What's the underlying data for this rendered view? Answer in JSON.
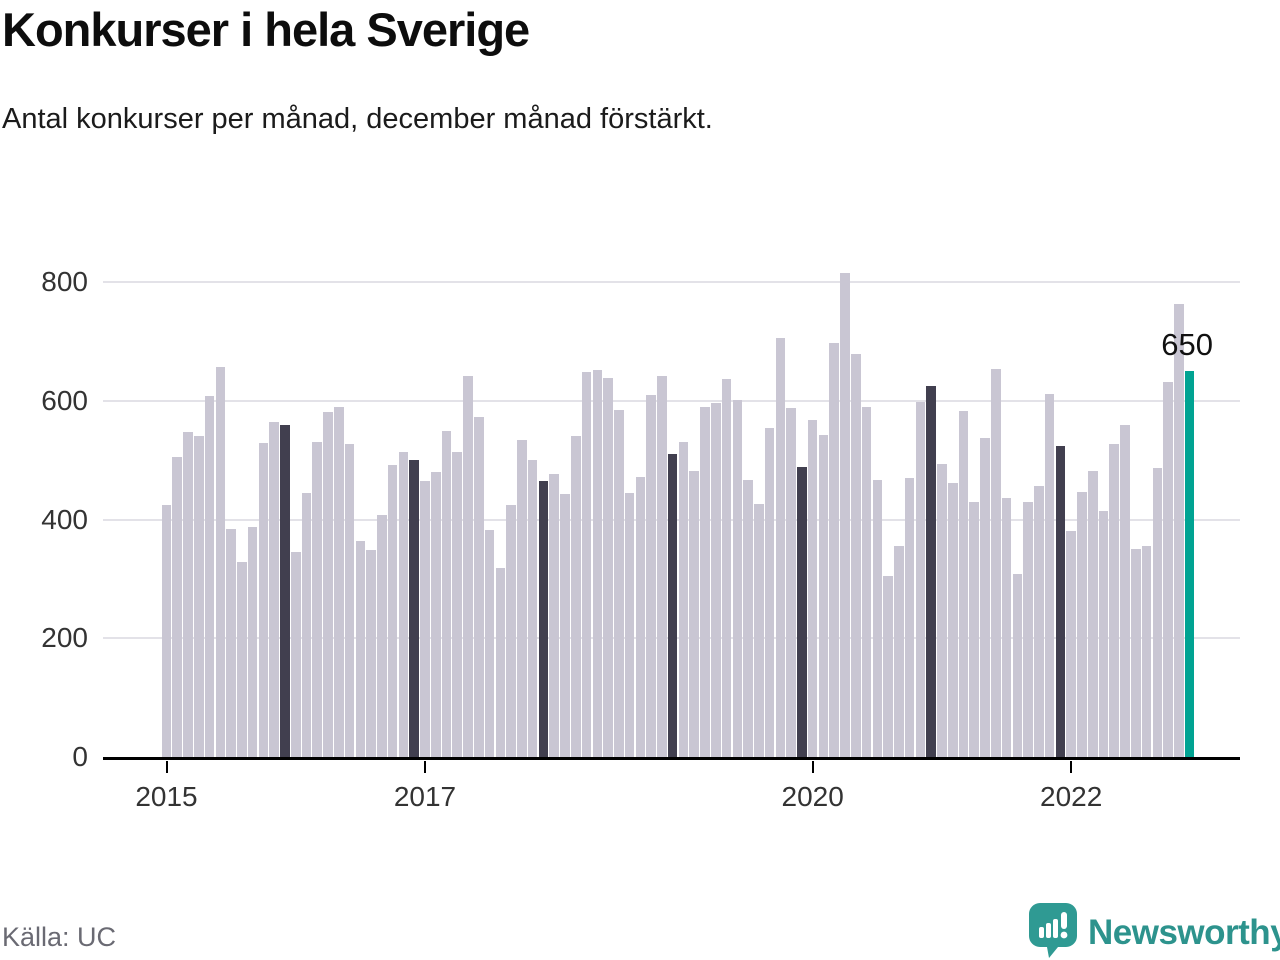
{
  "header": {
    "title": "Konkurser i hela Sverige",
    "subtitle": "Antal konkurser per månad, december månad förstärkt."
  },
  "footer": {
    "source": "Källa: UC",
    "brand": "Newsworthy"
  },
  "colors": {
    "bar_default": "#c9c6d3",
    "bar_december": "#413f4f",
    "bar_highlight": "#00a392",
    "grid": "#e3e2e8",
    "axis": "#000000",
    "brand_teal": "#2d938d"
  },
  "chart_data": {
    "type": "bar",
    "title": "Konkurser i hela Sverige",
    "subtitle": "Antal konkurser per månad, december månad förstärkt.",
    "xlabel": "",
    "ylabel": "Antal konkurser per månad",
    "ylim": [
      0,
      800
    ],
    "yticks": [
      0,
      200,
      400,
      600,
      800
    ],
    "grid": true,
    "legend": false,
    "december_emphasized": true,
    "xticks": [
      {
        "label": "2015",
        "year": 2015,
        "month": 1
      },
      {
        "label": "2017",
        "year": 2017,
        "month": 1
      },
      {
        "label": "2020",
        "year": 2020,
        "month": 1
      },
      {
        "label": "2022",
        "year": 2022,
        "month": 1
      }
    ],
    "series": [
      {
        "year": 2015,
        "values": [
          425,
          505,
          547,
          540,
          608,
          657,
          384,
          329,
          387,
          529,
          564,
          559
        ]
      },
      {
        "year": 2016,
        "values": [
          345,
          444,
          531,
          581,
          590,
          527,
          363,
          349,
          408,
          491,
          513,
          500
        ]
      },
      {
        "year": 2017,
        "values": [
          464,
          480,
          549,
          514,
          642,
          572,
          382,
          319,
          425,
          534,
          501,
          464
        ]
      },
      {
        "year": 2018,
        "values": [
          477,
          443,
          540,
          649,
          652,
          638,
          585,
          445,
          471,
          610,
          641,
          511
        ]
      },
      {
        "year": 2019,
        "values": [
          531,
          482,
          589,
          597,
          637,
          601,
          467,
          426,
          554,
          705,
          587,
          488
        ]
      },
      {
        "year": 2020,
        "values": [
          567,
          542,
          697,
          815,
          678,
          589,
          466,
          305,
          355,
          470,
          598,
          625
        ]
      },
      {
        "year": 2021,
        "values": [
          493,
          461,
          582,
          429,
          538,
          653,
          437,
          308,
          430,
          457,
          611,
          523
        ]
      },
      {
        "year": 2022,
        "values": [
          380,
          446,
          482,
          415,
          527,
          559,
          351,
          355,
          487,
          632,
          763,
          650
        ]
      }
    ],
    "annotation": {
      "text": "650",
      "month": "2022-12",
      "value": 650
    }
  }
}
